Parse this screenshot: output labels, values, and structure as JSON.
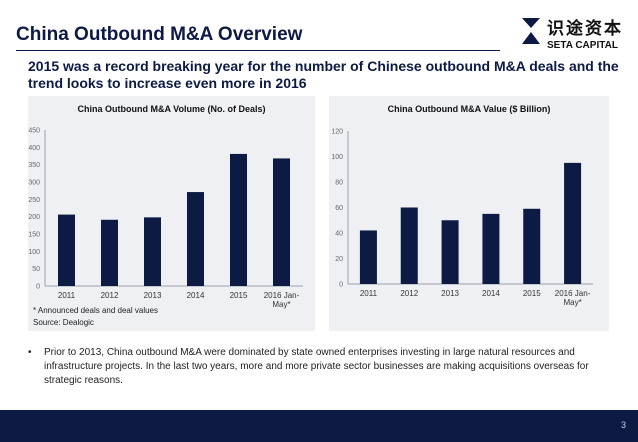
{
  "header": {
    "title": "China Outbound M&A Overview",
    "subtitle": "2015 was a record breaking year for the number of Chinese outbound M&A deals and the trend looks to increase even more in 2016"
  },
  "logo": {
    "cn_text": "识途资本",
    "en_text": "SETA CAPITAL",
    "icon": "seta-logo-icon"
  },
  "notes": {
    "announced": "* Announced deals and deal values",
    "source": "Source: Dealogic"
  },
  "bullet": {
    "symbol": "•",
    "text": "Prior to 2013, China outbound M&A were dominated by state owned enterprises investing in large natural resources and infrastructure projects. In the last two years, more and more private sector businesses are making acquisitions overseas for strategic reasons."
  },
  "footer": {
    "page_number": "3"
  },
  "colors": {
    "navy": "#0c1a44",
    "bar": "#0c1a44",
    "panel": "#eef0f4"
  },
  "chart_data": [
    {
      "type": "bar",
      "title": "China Outbound M&A Volume (No. of Deals)",
      "categories": [
        "2011",
        "2012",
        "2013",
        "2014",
        "2015",
        "2016 Jan-May*"
      ],
      "category_lines": [
        [
          "2011"
        ],
        [
          "2012"
        ],
        [
          "2013"
        ],
        [
          "2014"
        ],
        [
          "2015"
        ],
        [
          "2016 Jan-",
          "May*"
        ]
      ],
      "values": [
        206,
        191,
        198,
        271,
        381,
        368
      ],
      "ylim": [
        0,
        450
      ],
      "yticks": [
        "0",
        "50",
        "100",
        "150",
        "200",
        "250",
        "300",
        "350",
        "400",
        "450"
      ],
      "xlabel": "",
      "ylabel": ""
    },
    {
      "type": "bar",
      "title": "China Outbound M&A Value ($ Billion)",
      "categories": [
        "2011",
        "2012",
        "2013",
        "2014",
        "2015",
        "2016 Jan-May*"
      ],
      "category_lines": [
        [
          "2011"
        ],
        [
          "2012"
        ],
        [
          "2013"
        ],
        [
          "2014"
        ],
        [
          "2015"
        ],
        [
          "2016 Jan-",
          "May*"
        ]
      ],
      "values": [
        42,
        60,
        50,
        55,
        59,
        95
      ],
      "ylim": [
        0,
        120
      ],
      "yticks": [
        "0",
        "20",
        "40",
        "60",
        "80",
        "100",
        "120"
      ],
      "xlabel": "",
      "ylabel": ""
    }
  ]
}
